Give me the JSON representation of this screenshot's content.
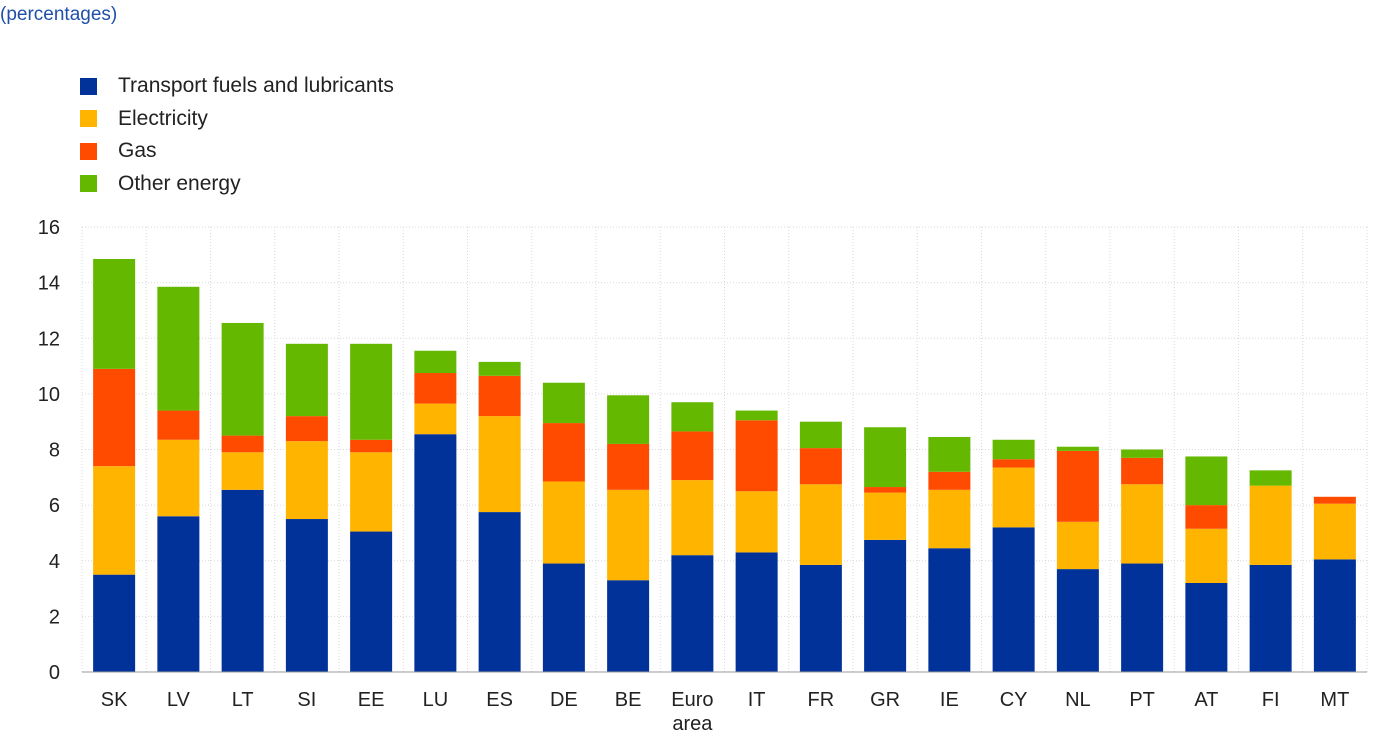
{
  "subtitle": "(percentages)",
  "chart_data": {
    "type": "bar",
    "stacked": true,
    "categories": [
      "SK",
      "LV",
      "LT",
      "SI",
      "EE",
      "LU",
      "ES",
      "DE",
      "BE",
      "Euro area",
      "IT",
      "FR",
      "GR",
      "IE",
      "CY",
      "NL",
      "PT",
      "AT",
      "FI",
      "MT"
    ],
    "series": [
      {
        "name": "Transport fuels and lubricants",
        "color": "#003299",
        "values": [
          3.5,
          5.6,
          6.55,
          5.5,
          5.05,
          8.55,
          5.75,
          3.9,
          3.3,
          4.2,
          4.3,
          3.85,
          4.75,
          4.45,
          5.2,
          3.7,
          3.9,
          3.2,
          3.85,
          4.05
        ]
      },
      {
        "name": "Electricity",
        "color": "#ffb400",
        "values": [
          3.9,
          2.75,
          1.35,
          2.8,
          2.85,
          1.1,
          3.45,
          2.95,
          3.25,
          2.7,
          2.2,
          2.9,
          1.7,
          2.1,
          2.15,
          1.7,
          2.85,
          1.95,
          2.85,
          2.0
        ]
      },
      {
        "name": "Gas",
        "color": "#ff4b00",
        "values": [
          3.5,
          1.05,
          0.6,
          0.9,
          0.45,
          1.1,
          1.45,
          2.1,
          1.65,
          1.75,
          2.55,
          1.3,
          0.2,
          0.65,
          0.3,
          2.55,
          0.95,
          0.85,
          0.0,
          0.25
        ]
      },
      {
        "name": "Other energy",
        "color": "#65b800",
        "values": [
          3.95,
          4.45,
          4.05,
          2.6,
          3.45,
          0.8,
          0.5,
          1.45,
          1.75,
          1.05,
          0.35,
          0.95,
          2.15,
          1.25,
          0.7,
          0.15,
          0.3,
          1.75,
          0.55,
          0.0
        ]
      }
    ],
    "ylim": [
      0,
      16
    ],
    "yticks": [
      0,
      2,
      4,
      6,
      8,
      10,
      12,
      14,
      16
    ],
    "grid": true,
    "legend_position": "top-left"
  }
}
